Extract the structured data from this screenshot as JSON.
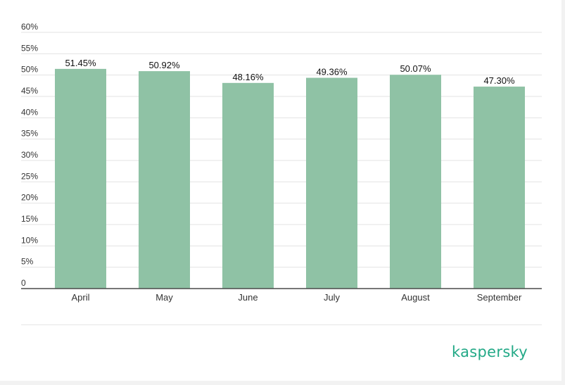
{
  "brand": {
    "logo_text": "kaspersky",
    "logo_color": "#23a987"
  },
  "chart_data": {
    "type": "bar",
    "title": "",
    "xlabel": "",
    "ylabel": "",
    "categories": [
      "April",
      "May",
      "June",
      "July",
      "August",
      "September"
    ],
    "values": [
      51.45,
      50.92,
      48.16,
      49.36,
      50.07,
      47.3
    ],
    "data_labels": [
      "51.45%",
      "50.92%",
      "48.16%",
      "49.36%",
      "50.07%",
      "47.30%"
    ],
    "ylim": [
      0,
      60
    ],
    "yticks": [
      0,
      5,
      10,
      15,
      20,
      25,
      30,
      35,
      40,
      45,
      50,
      55,
      60
    ],
    "ytick_labels": [
      "0",
      "5%",
      "10%",
      "15%",
      "20%",
      "25%",
      "30%",
      "35%",
      "40%",
      "45%",
      "50%",
      "55%",
      "60%"
    ],
    "grid": true,
    "legend": "none",
    "bar_color": "#8fc2a5"
  }
}
